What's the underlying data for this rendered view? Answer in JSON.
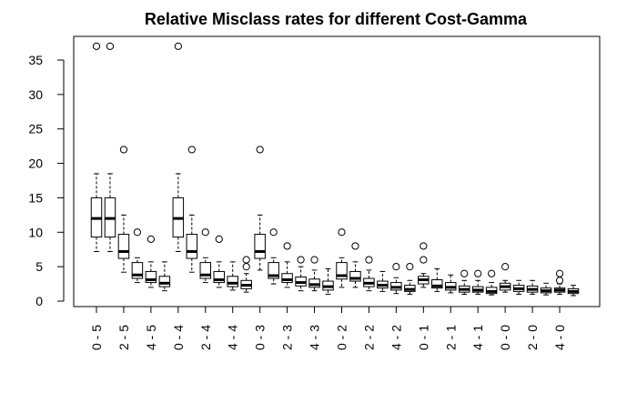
{
  "chart_data": {
    "type": "box",
    "title": "Relative Misclass rates for different Cost-Gamma",
    "xlabel": "",
    "ylabel": "",
    "ylim": [
      0,
      38
    ],
    "yticks": [
      0,
      5,
      10,
      15,
      20,
      25,
      30,
      35
    ],
    "x_tick_labels": [
      "0 - 5",
      "2 - 5",
      "4 - 5",
      "0 - 4",
      "2 - 4",
      "4 - 4",
      "0 - 3",
      "2 - 3",
      "4 - 3",
      "0 - 2",
      "2 - 2",
      "4 - 2",
      "0 - 1",
      "2 - 1",
      "4 - 1",
      "0 - 0",
      "2 - 0",
      "4 - 0"
    ],
    "boxes": [
      {
        "min": 7.2,
        "q1": 9.3,
        "median": 12.0,
        "q3": 15.0,
        "max": 18.5,
        "outliers": [
          37.0
        ]
      },
      {
        "min": 7.2,
        "q1": 9.3,
        "median": 12.0,
        "q3": 15.0,
        "max": 18.5,
        "outliers": [
          37.0
        ]
      },
      {
        "min": 4.2,
        "q1": 6.2,
        "median": 7.2,
        "q3": 9.7,
        "max": 12.5,
        "outliers": [
          22.0
        ]
      },
      {
        "min": 2.7,
        "q1": 3.3,
        "median": 3.8,
        "q3": 5.6,
        "max": 6.3,
        "outliers": [
          10.0
        ]
      },
      {
        "min": 2.0,
        "q1": 2.7,
        "median": 3.1,
        "q3": 4.3,
        "max": 5.7,
        "outliers": [
          9.0
        ]
      },
      {
        "min": 1.5,
        "q1": 2.1,
        "median": 2.6,
        "q3": 3.6,
        "max": 5.7,
        "outliers": []
      },
      {
        "min": 7.2,
        "q1": 9.3,
        "median": 12.0,
        "q3": 15.0,
        "max": 18.5,
        "outliers": [
          37.0
        ]
      },
      {
        "min": 4.2,
        "q1": 6.2,
        "median": 7.2,
        "q3": 9.7,
        "max": 12.5,
        "outliers": [
          22.0
        ]
      },
      {
        "min": 2.7,
        "q1": 3.3,
        "median": 3.8,
        "q3": 5.6,
        "max": 6.3,
        "outliers": [
          10.0
        ]
      },
      {
        "min": 2.0,
        "q1": 2.7,
        "median": 3.1,
        "q3": 4.3,
        "max": 5.7,
        "outliers": [
          9.0
        ]
      },
      {
        "min": 1.6,
        "q1": 2.1,
        "median": 2.6,
        "q3": 3.6,
        "max": 5.7,
        "outliers": []
      },
      {
        "min": 1.3,
        "q1": 1.8,
        "median": 2.3,
        "q3": 3.0,
        "max": 4.0,
        "outliers": [
          5.0,
          6.0
        ]
      },
      {
        "min": 4.5,
        "q1": 6.2,
        "median": 7.2,
        "q3": 9.7,
        "max": 12.5,
        "outliers": [
          22.0
        ]
      },
      {
        "min": 2.5,
        "q1": 3.3,
        "median": 3.7,
        "q3": 5.6,
        "max": 6.3,
        "outliers": [
          10.0
        ]
      },
      {
        "min": 2.0,
        "q1": 2.7,
        "median": 3.1,
        "q3": 4.0,
        "max": 5.7,
        "outliers": [
          8.0
        ]
      },
      {
        "min": 1.5,
        "q1": 2.2,
        "median": 2.7,
        "q3": 3.5,
        "max": 5.0,
        "outliers": [
          6.0
        ]
      },
      {
        "min": 1.5,
        "q1": 2.0,
        "median": 2.4,
        "q3": 3.2,
        "max": 4.5,
        "outliers": [
          6.0
        ]
      },
      {
        "min": 1.0,
        "q1": 1.6,
        "median": 2.1,
        "q3": 2.9,
        "max": 4.7,
        "outliers": []
      },
      {
        "min": 2.0,
        "q1": 3.2,
        "median": 3.7,
        "q3": 5.6,
        "max": 6.3,
        "outliers": [
          10.0
        ]
      },
      {
        "min": 2.0,
        "q1": 2.9,
        "median": 3.3,
        "q3": 4.3,
        "max": 5.7,
        "outliers": [
          8.0
        ]
      },
      {
        "min": 1.5,
        "q1": 2.1,
        "median": 2.6,
        "q3": 3.3,
        "max": 4.5,
        "outliers": [
          6.0
        ]
      },
      {
        "min": 1.4,
        "q1": 1.9,
        "median": 2.3,
        "q3": 2.9,
        "max": 4.3,
        "outliers": []
      },
      {
        "min": 1.1,
        "q1": 1.6,
        "median": 2.0,
        "q3": 2.7,
        "max": 3.4,
        "outliers": [
          5.0
        ]
      },
      {
        "min": 1.0,
        "q1": 1.4,
        "median": 1.7,
        "q3": 2.3,
        "max": 3.0,
        "outliers": [
          5.0
        ]
      },
      {
        "min": 2.0,
        "q1": 2.5,
        "median": 3.1,
        "q3": 3.6,
        "max": 4.0,
        "outliers": [
          6.0,
          8.0
        ]
      },
      {
        "min": 1.4,
        "q1": 1.9,
        "median": 2.2,
        "q3": 3.1,
        "max": 4.7,
        "outliers": []
      },
      {
        "min": 1.2,
        "q1": 1.6,
        "median": 2.0,
        "q3": 2.7,
        "max": 3.8,
        "outliers": []
      },
      {
        "min": 1.0,
        "q1": 1.3,
        "median": 1.7,
        "q3": 2.2,
        "max": 3.0,
        "outliers": [
          4.0
        ]
      },
      {
        "min": 1.0,
        "q1": 1.3,
        "median": 1.6,
        "q3": 2.1,
        "max": 3.0,
        "outliers": [
          4.0
        ]
      },
      {
        "min": 0.9,
        "q1": 1.1,
        "median": 1.4,
        "q3": 2.0,
        "max": 2.7,
        "outliers": [
          4.0
        ]
      },
      {
        "min": 1.3,
        "q1": 1.6,
        "median": 2.1,
        "q3": 2.6,
        "max": 3.0,
        "outliers": [
          5.0
        ]
      },
      {
        "min": 1.0,
        "q1": 1.4,
        "median": 1.8,
        "q3": 2.3,
        "max": 3.0,
        "outliers": []
      },
      {
        "min": 1.0,
        "q1": 1.3,
        "median": 1.7,
        "q3": 2.2,
        "max": 3.0,
        "outliers": []
      },
      {
        "min": 0.9,
        "q1": 1.2,
        "median": 1.5,
        "q3": 1.9,
        "max": 2.6,
        "outliers": []
      },
      {
        "min": 1.0,
        "q1": 1.3,
        "median": 1.6,
        "q3": 1.9,
        "max": 2.5,
        "outliers": [
          3.0,
          4.0
        ]
      },
      {
        "min": 0.8,
        "q1": 1.1,
        "median": 1.4,
        "q3": 1.8,
        "max": 2.3,
        "outliers": []
      }
    ]
  }
}
